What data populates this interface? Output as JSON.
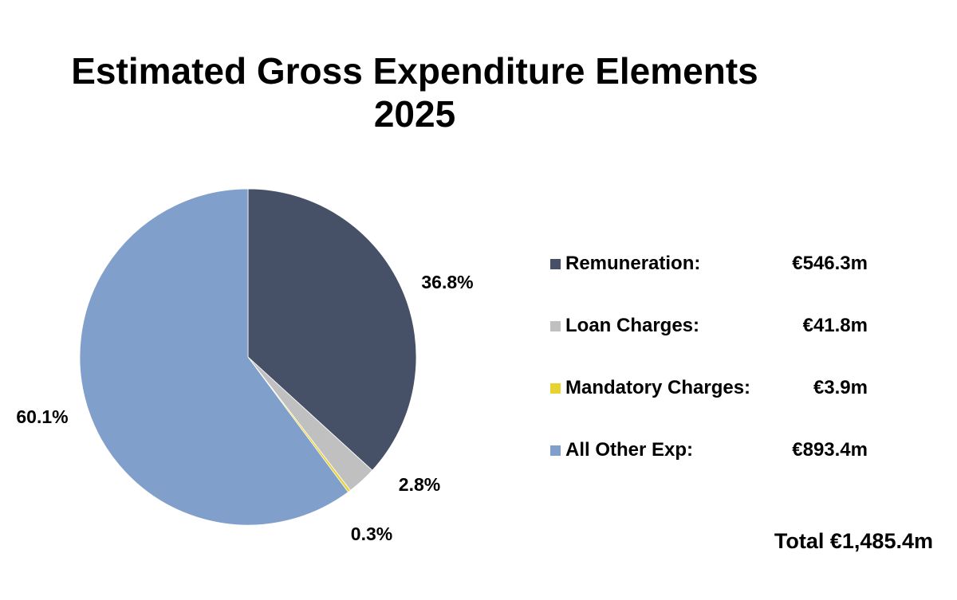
{
  "chart_data": {
    "type": "pie",
    "title": "Estimated Gross Expenditure Elements",
    "subtitle": "2025",
    "slices": [
      {
        "name": "Remuneration",
        "legend_label": "Remuneration:",
        "value": 546.3,
        "value_label": "€546.3m",
        "percent": 36.8,
        "percent_label": "36.8%",
        "color": "#465066"
      },
      {
        "name": "Loan Charges",
        "legend_label": "Loan Charges:",
        "value": 41.8,
        "value_label": "€41.8m",
        "percent": 2.8,
        "percent_label": "2.8%",
        "color": "#c0c0c0"
      },
      {
        "name": "Mandatory Charges",
        "legend_label": "Mandatory Charges:",
        "value": 3.9,
        "value_label": "€3.9m",
        "percent": 0.3,
        "percent_label": "0.3%",
        "color": "#e6d230"
      },
      {
        "name": "All Other Exp",
        "legend_label": "All Other Exp:",
        "value": 893.4,
        "value_label": "€893.4m",
        "percent": 60.1,
        "percent_label": "60.1%",
        "color": "#809fca"
      }
    ],
    "total_label": "Total €1,485.4m",
    "legend_position": "right"
  }
}
